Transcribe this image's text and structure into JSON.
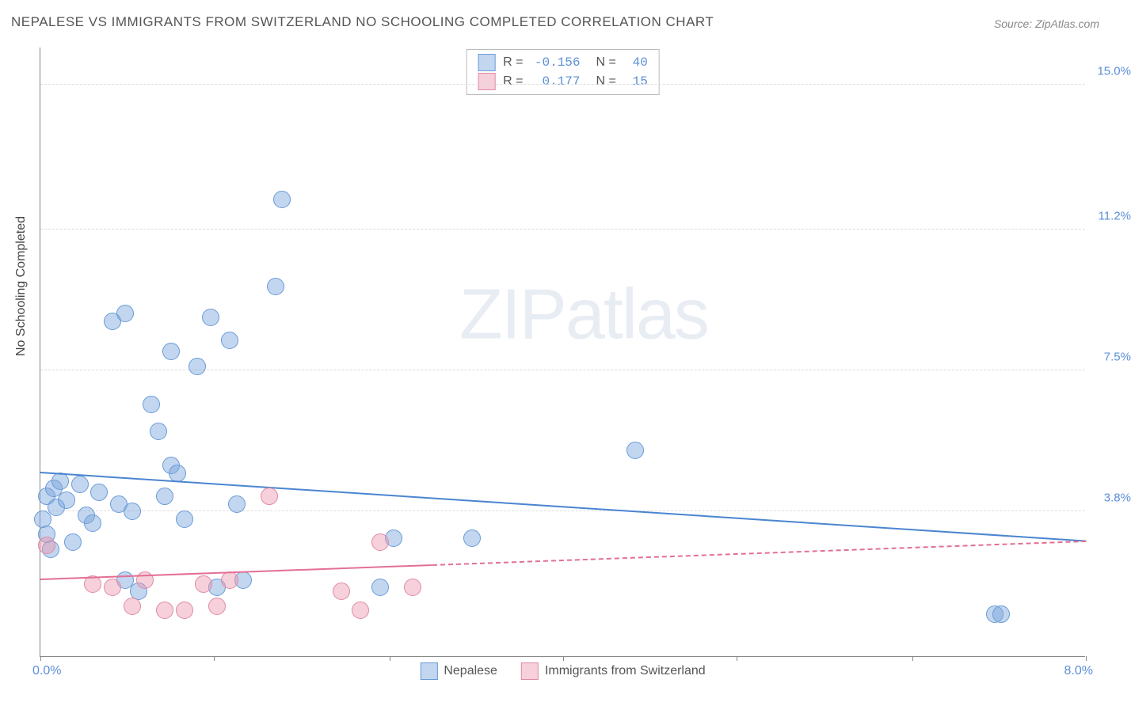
{
  "title": "NEPALESE VS IMMIGRANTS FROM SWITZERLAND NO SCHOOLING COMPLETED CORRELATION CHART",
  "source": "Source: ZipAtlas.com",
  "y_axis_label": "No Schooling Completed",
  "watermark_zip": "ZIP",
  "watermark_atlas": "atlas",
  "chart": {
    "type": "scatter",
    "xlim": [
      0.0,
      8.0
    ],
    "ylim": [
      0.0,
      16.0
    ],
    "x_ticks": [
      0,
      1.33,
      2.67,
      4.0,
      5.33,
      6.67,
      8.0
    ],
    "y_grid": [
      {
        "val": 3.8,
        "label": "3.8%"
      },
      {
        "val": 7.5,
        "label": "7.5%"
      },
      {
        "val": 11.2,
        "label": "11.2%"
      },
      {
        "val": 15.0,
        "label": "15.0%"
      }
    ],
    "x_label_min": "0.0%",
    "x_label_max": "8.0%",
    "background_color": "#ffffff",
    "grid_color": "#dddddd",
    "axis_color": "#888888",
    "tick_font_color": "#5b8fd6",
    "series": [
      {
        "id": "nepalese",
        "label": "Nepalese",
        "fill": "rgba(120,165,220,0.45)",
        "stroke": "#6a9bd8",
        "marker_radius": 11,
        "stats": {
          "R": "-0.156",
          "N": "40"
        },
        "trend": {
          "x1": 0.0,
          "y1": 4.8,
          "x2": 8.0,
          "y2": 3.0,
          "color": "#4a85d0",
          "solid_until": 8.0
        },
        "points": [
          [
            0.02,
            3.6
          ],
          [
            0.05,
            3.2
          ],
          [
            0.05,
            4.2
          ],
          [
            0.08,
            2.8
          ],
          [
            0.1,
            4.4
          ],
          [
            0.12,
            3.9
          ],
          [
            0.15,
            4.6
          ],
          [
            0.2,
            4.1
          ],
          [
            0.25,
            3.0
          ],
          [
            0.3,
            4.5
          ],
          [
            0.35,
            3.7
          ],
          [
            0.4,
            3.5
          ],
          [
            0.45,
            4.3
          ],
          [
            0.55,
            8.8
          ],
          [
            0.6,
            4.0
          ],
          [
            0.65,
            9.0
          ],
          [
            0.65,
            2.0
          ],
          [
            0.7,
            3.8
          ],
          [
            0.75,
            1.7
          ],
          [
            0.85,
            6.6
          ],
          [
            0.9,
            5.9
          ],
          [
            0.95,
            4.2
          ],
          [
            1.0,
            8.0
          ],
          [
            1.0,
            5.0
          ],
          [
            1.05,
            4.8
          ],
          [
            1.1,
            3.6
          ],
          [
            1.2,
            7.6
          ],
          [
            1.3,
            8.9
          ],
          [
            1.35,
            1.8
          ],
          [
            1.45,
            8.3
          ],
          [
            1.5,
            4.0
          ],
          [
            1.55,
            2.0
          ],
          [
            1.8,
            9.7
          ],
          [
            1.85,
            12.0
          ],
          [
            2.6,
            1.8
          ],
          [
            2.7,
            3.1
          ],
          [
            3.3,
            3.1
          ],
          [
            4.55,
            5.4
          ],
          [
            7.3,
            1.1
          ],
          [
            7.35,
            1.1
          ]
        ]
      },
      {
        "id": "swiss",
        "label": "Immigrants from Switzerland",
        "fill": "rgba(235,150,175,0.45)",
        "stroke": "#e08aa5",
        "marker_radius": 11,
        "stats": {
          "R": "0.177",
          "N": "15"
        },
        "trend": {
          "x1": 0.0,
          "y1": 2.0,
          "x2": 8.0,
          "y2": 3.0,
          "color": "#e36f95",
          "solid_until": 3.0
        },
        "points": [
          [
            0.05,
            2.9
          ],
          [
            0.4,
            1.9
          ],
          [
            0.55,
            1.8
          ],
          [
            0.7,
            1.3
          ],
          [
            0.8,
            2.0
          ],
          [
            0.95,
            1.2
          ],
          [
            1.1,
            1.2
          ],
          [
            1.25,
            1.9
          ],
          [
            1.35,
            1.3
          ],
          [
            1.45,
            2.0
          ],
          [
            1.75,
            4.2
          ],
          [
            2.3,
            1.7
          ],
          [
            2.45,
            1.2
          ],
          [
            2.6,
            3.0
          ],
          [
            2.85,
            1.8
          ]
        ]
      }
    ]
  },
  "legend_top": {
    "R_label": "R =",
    "N_label": "N ="
  },
  "legend_bottom": [
    {
      "series": "nepalese"
    },
    {
      "series": "swiss"
    }
  ]
}
